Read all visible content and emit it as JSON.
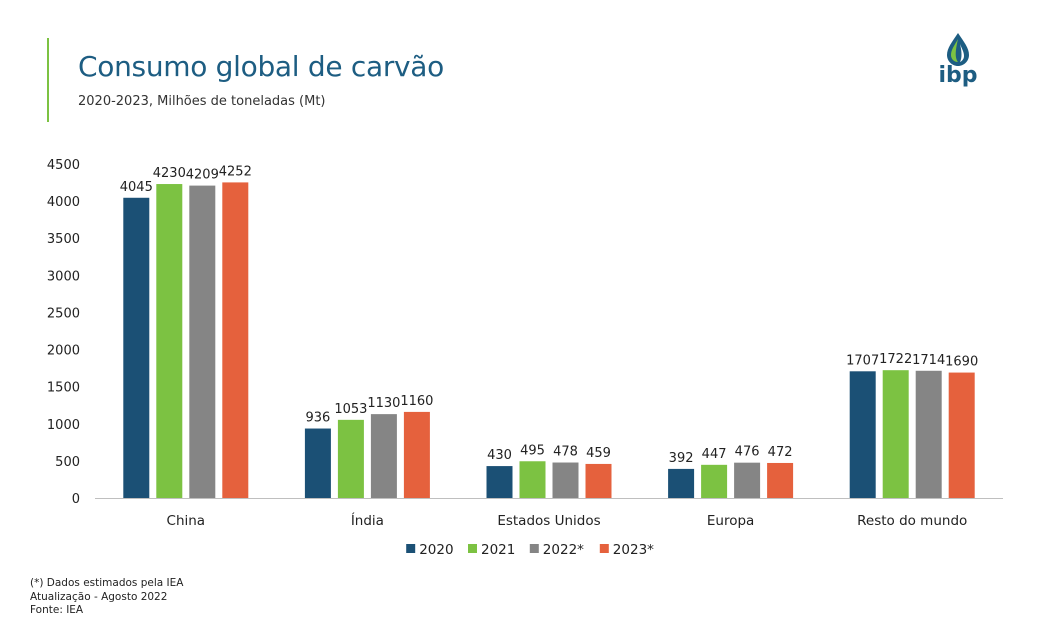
{
  "header": {
    "title": "Consumo global de carvão",
    "subtitle": "2020-2023, Milhões de toneladas (Mt)"
  },
  "logo": {
    "text": "ibp"
  },
  "chart_data": {
    "type": "bar",
    "title": "Consumo global de carvão",
    "xlabel": "",
    "ylabel": "",
    "ylim": [
      0,
      4500
    ],
    "yticks": [
      0,
      500,
      1000,
      1500,
      2000,
      2500,
      3000,
      3500,
      4000,
      4500
    ],
    "grid": false,
    "legend": "bottom-center",
    "categories": [
      "China",
      "Índia",
      "Estados Unidos",
      "Europa",
      "Resto do mundo"
    ],
    "series": [
      {
        "name": "2020",
        "color": "#1b5075",
        "values": [
          4045,
          936,
          430,
          392,
          1707
        ]
      },
      {
        "name": "2021",
        "color": "#7cc242",
        "values": [
          4230,
          1053,
          495,
          447,
          1722
        ]
      },
      {
        "name": "2022*",
        "color": "#858585",
        "values": [
          4209,
          1130,
          478,
          476,
          1714
        ]
      },
      {
        "name": "2023*",
        "color": "#e5613d",
        "values": [
          4252,
          1160,
          459,
          472,
          1690
        ]
      }
    ]
  },
  "footnotes": {
    "note": "(*) Dados estimados pela IEA",
    "update": "Atualização - Agosto 2022",
    "source": "Fonte: IEA"
  },
  "colors": {
    "accent": "#7cc242",
    "brand": "#1d5d82"
  }
}
